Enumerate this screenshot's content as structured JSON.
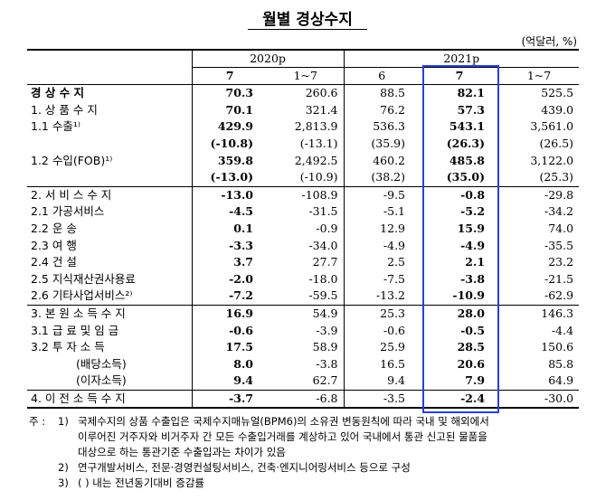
{
  "title": "월별 경상수지",
  "unit": "(억달러, %)",
  "header": {
    "year1": "2020p",
    "year2": "2021p",
    "cols": [
      "7",
      "1~7",
      "6",
      "7",
      "1~7"
    ]
  },
  "rows": [
    {
      "label": "경 상 수 지",
      "v": [
        "70.3",
        "260.6",
        "88.5",
        "82.1",
        "525.5"
      ],
      "bold": true,
      "section": false
    },
    {
      "label": "1. 상 품 수 지",
      "v": [
        "70.1",
        "321.4",
        "76.2",
        "57.3",
        "439.0"
      ],
      "section": false
    },
    {
      "label": "1.1 수출¹⁾",
      "v": [
        "429.9",
        "2,813.9",
        "536.3",
        "543.1",
        "3,561.0"
      ],
      "section": false
    },
    {
      "label": "",
      "v": [
        "(-10.8)",
        "(-13.1)",
        "(35.9)",
        "(26.3)",
        "(26.5)"
      ],
      "section": false
    },
    {
      "label": "1.2 수입(FOB)¹⁾",
      "v": [
        "359.8",
        "2,492.5",
        "460.2",
        "485.8",
        "3,122.0"
      ],
      "section": false
    },
    {
      "label": "",
      "v": [
        "(-13.0)",
        "(-10.9)",
        "(38.2)",
        "(35.0)",
        "(25.3)"
      ],
      "section": false
    },
    {
      "label": "2. 서 비 스 수 지",
      "v": [
        "-13.0",
        "-108.9",
        "-9.5",
        "-0.8",
        "-29.8"
      ],
      "section": true
    },
    {
      "label": "2.1 가공서비스",
      "v": [
        "-4.5",
        "-31.5",
        "-5.1",
        "-5.2",
        "-34.2"
      ],
      "section": false
    },
    {
      "label": "2.2 운        송",
      "v": [
        "0.1",
        "-0.9",
        "12.9",
        "15.9",
        "74.0"
      ],
      "section": false
    },
    {
      "label": "2.3 여        행",
      "v": [
        "-3.3",
        "-34.0",
        "-4.9",
        "-4.9",
        "-35.5"
      ],
      "section": false
    },
    {
      "label": "2.4 건        설",
      "v": [
        "3.7",
        "27.7",
        "2.5",
        "2.1",
        "23.2"
      ],
      "section": false
    },
    {
      "label": "2.5 지식재산권사용료",
      "v": [
        "-2.0",
        "-18.0",
        "-7.5",
        "-3.8",
        "-21.5"
      ],
      "section": false
    },
    {
      "label": "2.6 기타사업서비스²⁾",
      "v": [
        "-7.2",
        "-59.5",
        "-13.2",
        "-10.9",
        "-62.9"
      ],
      "section": false
    },
    {
      "label": "3. 본 원 소 득 수 지",
      "v": [
        "16.9",
        "54.9",
        "25.3",
        "28.0",
        "146.3"
      ],
      "section": true
    },
    {
      "label": "3.1 급 료 및 임 금",
      "v": [
        "-0.6",
        "-3.9",
        "-0.6",
        "-0.5",
        "-4.4"
      ],
      "section": false
    },
    {
      "label": "3.2 투  자  소  득",
      "v": [
        "17.5",
        "58.9",
        "25.9",
        "28.5",
        "150.6"
      ],
      "section": false
    },
    {
      "label": "(배당소득)",
      "v": [
        "8.0",
        "-3.8",
        "16.5",
        "20.6",
        "85.8"
      ],
      "section": false,
      "indent": true
    },
    {
      "label": "(이자소득)",
      "v": [
        "9.4",
        "62.7",
        "9.4",
        "7.9",
        "64.9"
      ],
      "section": false,
      "indent": true
    },
    {
      "label": "4. 이 전 소 득 수 지",
      "v": [
        "-3.7",
        "-6.8",
        "-3.5",
        "-2.4",
        "-30.0"
      ],
      "section": true,
      "last": true
    }
  ],
  "notes": {
    "prefix": "주 :",
    "items": [
      {
        "num": "1)",
        "lines": [
          "국제수지의 상품 수출입은 국제수지매뉴얼(BPM6)의 소유권 변동원칙에 따라 국내 및 해외에서",
          "이루어진 거주자와 비거주자 간 모든 수출입거래를 계상하고 있어 국내에서 통관 신고된 물품을",
          "대상으로 하는 통관기준 수출입과는 차이가 있음"
        ]
      },
      {
        "num": "2)",
        "lines": [
          "연구개발서비스, 전문·경영컨설팅서비스, 건축·엔지니어링서비스 등으로 구성"
        ]
      },
      {
        "num": "3)",
        "lines": [
          "(  ) 내는 전년동기대비 증감률"
        ]
      }
    ]
  },
  "colors": {
    "highlight": "#2b3fd8"
  }
}
